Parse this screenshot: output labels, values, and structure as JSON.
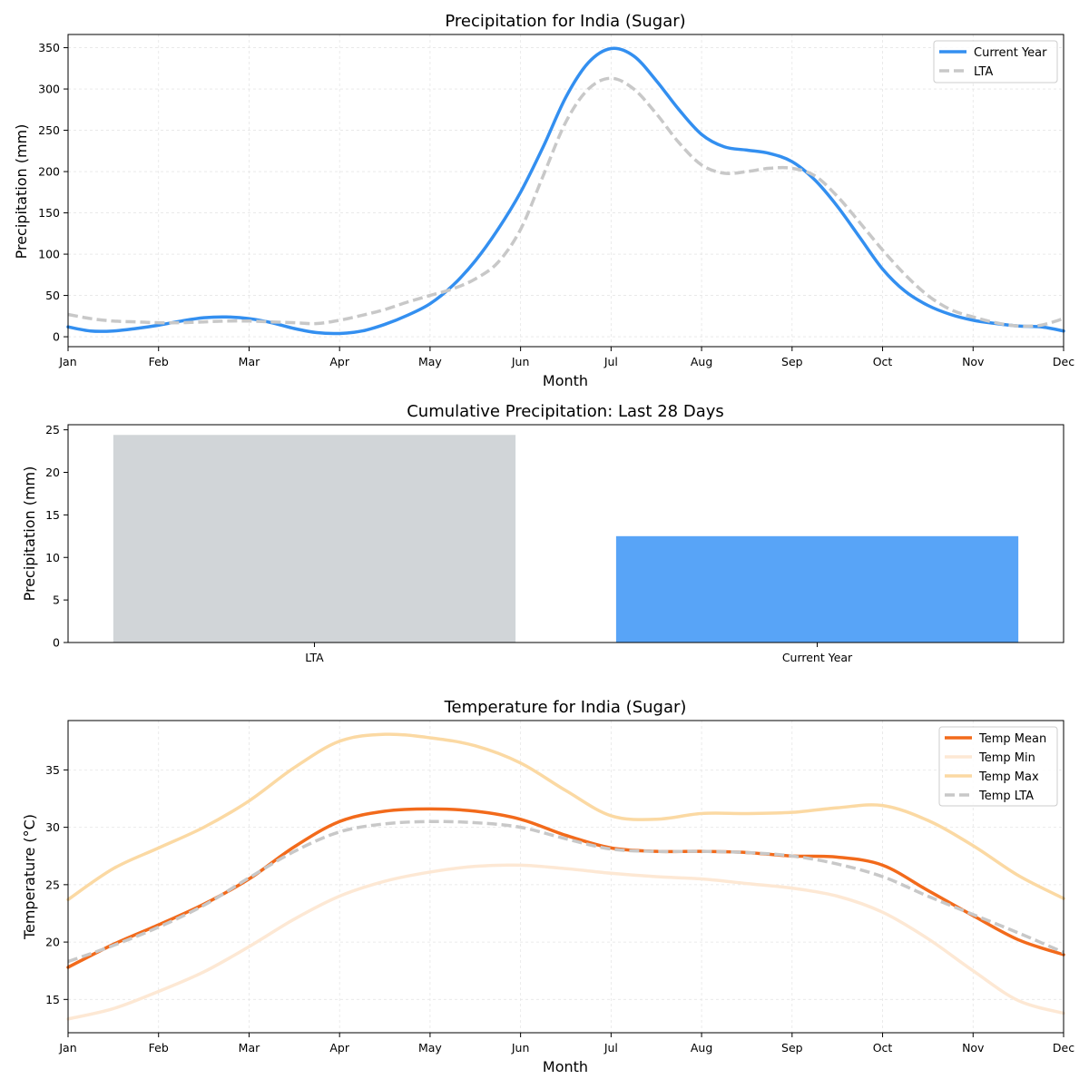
{
  "chart_data": [
    {
      "type": "line",
      "title": "Precipitation for India (Sugar)",
      "xlabel": "Month",
      "ylabel": "Precipitation (mm)",
      "categories": [
        "Jan",
        "Feb",
        "Mar",
        "Apr",
        "May",
        "Jun",
        "Jul",
        "Aug",
        "Sep",
        "Oct",
        "Nov",
        "Dec"
      ],
      "xlim": [
        0,
        11
      ],
      "ylim": [
        -12,
        366
      ],
      "yticks": [
        0,
        50,
        100,
        150,
        200,
        250,
        300,
        350
      ],
      "grid": true,
      "legend": "top-right",
      "series": [
        {
          "name": "Current Year",
          "color": "#338ff0",
          "style": "solid",
          "x": [
            0,
            0.25,
            0.5,
            0.75,
            1,
            1.25,
            1.5,
            1.75,
            2,
            2.25,
            2.5,
            2.75,
            3,
            3.25,
            3.5,
            3.75,
            4,
            4.25,
            4.5,
            4.75,
            5,
            5.25,
            5.5,
            5.75,
            6,
            6.25,
            6.5,
            6.75,
            7,
            7.25,
            7.5,
            7.75,
            8,
            8.25,
            8.5,
            8.75,
            9,
            9.25,
            9.5,
            9.75,
            10,
            10.25,
            10.5,
            10.75,
            11
          ],
          "values": [
            12,
            7,
            7,
            10,
            14,
            19,
            23,
            24,
            22,
            17,
            10,
            5,
            4,
            7,
            15,
            26,
            40,
            62,
            92,
            130,
            175,
            230,
            290,
            332,
            349,
            340,
            310,
            275,
            245,
            230,
            226,
            222,
            212,
            190,
            158,
            120,
            82,
            55,
            38,
            27,
            20,
            16,
            13,
            12,
            7
          ]
        },
        {
          "name": "LTA",
          "color": "#c8c8c8",
          "style": "dashed",
          "x": [
            0,
            0.25,
            0.5,
            0.75,
            1,
            1.25,
            1.5,
            1.75,
            2,
            2.25,
            2.5,
            2.75,
            3,
            3.25,
            3.5,
            3.75,
            4,
            4.25,
            4.5,
            4.75,
            5,
            5.25,
            5.5,
            5.75,
            6,
            6.25,
            6.5,
            6.75,
            7,
            7.25,
            7.5,
            7.75,
            8,
            8.25,
            8.5,
            8.75,
            9,
            9.25,
            9.5,
            9.75,
            10,
            10.25,
            10.5,
            10.75,
            11
          ],
          "values": [
            27,
            22,
            19,
            18,
            17,
            17,
            18,
            19,
            19,
            18,
            17,
            16,
            20,
            26,
            33,
            42,
            50,
            58,
            70,
            90,
            130,
            195,
            260,
            300,
            313,
            300,
            270,
            235,
            208,
            198,
            200,
            204,
            204,
            195,
            170,
            138,
            105,
            75,
            50,
            33,
            24,
            17,
            13,
            14,
            22
          ]
        }
      ]
    },
    {
      "type": "bar",
      "title": "Cumulative Precipitation: Last 28 Days",
      "xlabel": "",
      "ylabel": "Precipitation (mm)",
      "categories": [
        "LTA",
        "Current Year"
      ],
      "values": [
        24.4,
        12.5
      ],
      "colors": [
        "#d1d5d8",
        "#58a4f7"
      ],
      "ylim": [
        0,
        25.6
      ],
      "yticks": [
        0,
        5,
        10,
        15,
        20,
        25
      ],
      "grid": false
    },
    {
      "type": "line",
      "title": "Temperature for India (Sugar)",
      "xlabel": "Month",
      "ylabel": "Temperature (°C)",
      "categories": [
        "Jan",
        "Feb",
        "Mar",
        "Apr",
        "May",
        "Jun",
        "Jul",
        "Aug",
        "Sep",
        "Oct",
        "Nov",
        "Dec"
      ],
      "xlim": [
        0,
        11
      ],
      "ylim": [
        12.1,
        39.3
      ],
      "yticks": [
        15,
        20,
        25,
        30,
        35
      ],
      "grid": true,
      "legend": "top-right",
      "series": [
        {
          "name": "Temp Mean",
          "color": "#f26a1b",
          "style": "solid",
          "x": [
            0,
            0.5,
            1,
            1.5,
            2,
            2.5,
            3,
            3.5,
            4,
            4.5,
            5,
            5.5,
            6,
            6.5,
            7,
            7.5,
            8,
            8.5,
            9,
            9.5,
            10,
            10.5,
            11
          ],
          "values": [
            17.8,
            19.8,
            21.5,
            23.3,
            25.5,
            28.3,
            30.5,
            31.4,
            31.6,
            31.4,
            30.7,
            29.3,
            28.2,
            27.9,
            27.9,
            27.8,
            27.5,
            27.4,
            26.7,
            24.5,
            22.3,
            20.2,
            18.9
          ]
        },
        {
          "name": "Temp Min",
          "color": "#fde8d4",
          "style": "solid",
          "x": [
            0,
            0.5,
            1,
            1.5,
            2,
            2.5,
            3,
            3.5,
            4,
            4.5,
            5,
            5.5,
            6,
            6.5,
            7,
            7.5,
            8,
            8.5,
            9,
            9.5,
            10,
            10.5,
            11
          ],
          "values": [
            13.3,
            14.2,
            15.7,
            17.4,
            19.6,
            22.0,
            24.0,
            25.3,
            26.1,
            26.6,
            26.7,
            26.4,
            26.0,
            25.7,
            25.5,
            25.1,
            24.7,
            24.0,
            22.6,
            20.3,
            17.5,
            14.9,
            13.8
          ]
        },
        {
          "name": "Temp Max",
          "color": "#fbd9a3",
          "style": "solid",
          "x": [
            0,
            0.5,
            1,
            1.5,
            2,
            2.5,
            3,
            3.5,
            4,
            4.5,
            5,
            5.5,
            6,
            6.5,
            7,
            7.5,
            8,
            8.5,
            9,
            9.5,
            10,
            10.5,
            11
          ],
          "values": [
            23.7,
            26.4,
            28.2,
            30.0,
            32.3,
            35.2,
            37.5,
            38.1,
            37.8,
            37.1,
            35.6,
            33.2,
            31.0,
            30.7,
            31.2,
            31.2,
            31.3,
            31.7,
            31.9,
            30.6,
            28.4,
            25.8,
            23.8
          ]
        },
        {
          "name": "Temp LTA",
          "color": "#c8c8c8",
          "style": "dashed",
          "x": [
            0,
            0.5,
            1,
            1.5,
            2,
            2.5,
            3,
            3.5,
            4,
            4.5,
            5,
            5.5,
            6,
            6.5,
            7,
            7.5,
            8,
            8.5,
            9,
            9.5,
            10,
            10.5,
            11
          ],
          "values": [
            18.3,
            19.7,
            21.3,
            23.2,
            25.6,
            27.9,
            29.6,
            30.3,
            30.5,
            30.4,
            30.0,
            29.0,
            28.1,
            27.9,
            27.9,
            27.8,
            27.5,
            26.8,
            25.7,
            24.0,
            22.4,
            20.8,
            19.1
          ]
        }
      ]
    }
  ]
}
